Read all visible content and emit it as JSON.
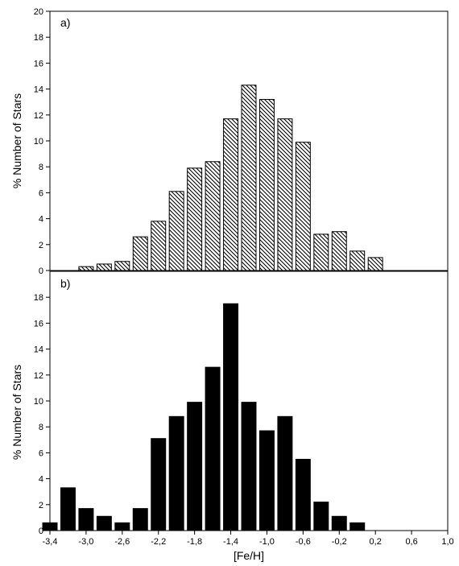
{
  "chart_data": [
    {
      "type": "bar",
      "panel_label": "a)",
      "ylabel": "% Number of Stars",
      "ylim": [
        0,
        20
      ],
      "yticks": [
        "0",
        "2",
        "4",
        "6",
        "8",
        "10",
        "12",
        "14",
        "16",
        "18",
        "20"
      ],
      "fill": "hatched",
      "bar_width": 0.16,
      "x": [
        -3.0,
        -2.8,
        -2.6,
        -2.4,
        -2.2,
        -2.0,
        -1.8,
        -1.6,
        -1.4,
        -1.2,
        -1.0,
        -0.8,
        -0.6,
        -0.4,
        -0.2,
        0.0,
        0.2
      ],
      "values": [
        0.3,
        0.5,
        0.7,
        2.6,
        3.8,
        6.1,
        7.9,
        8.4,
        11.7,
        14.3,
        13.2,
        11.7,
        9.9,
        2.8,
        3.0,
        1.5,
        1.0
      ]
    },
    {
      "type": "bar",
      "panel_label": "b)",
      "ylabel": "% Number of Stars",
      "xlabel": "[Fe/H]",
      "ylim": [
        0,
        20
      ],
      "yticks": [
        "0",
        "2",
        "4",
        "6",
        "8",
        "10",
        "12",
        "14",
        "16",
        "18"
      ],
      "xlim": [
        -3.4,
        1.0
      ],
      "xticks": [
        "-3,4",
        "-3,0",
        "-2,6",
        "-2,2",
        "-1,8",
        "-1,4",
        "-1,0",
        "-0,6",
        "-0,2",
        "0,2",
        "0,6",
        "1,0"
      ],
      "fill": "solid",
      "bar_width": 0.16,
      "x": [
        -3.4,
        -3.2,
        -3.0,
        -2.8,
        -2.6,
        -2.4,
        -2.2,
        -2.0,
        -1.8,
        -1.6,
        -1.4,
        -1.2,
        -1.0,
        -0.8,
        -0.6,
        -0.4,
        -0.2,
        0.0,
        0.2
      ],
      "values": [
        0.6,
        3.3,
        1.7,
        1.1,
        0.6,
        1.7,
        7.1,
        8.8,
        9.9,
        12.6,
        17.5,
        9.9,
        7.7,
        8.8,
        5.5,
        2.2,
        1.1,
        0.6,
        0
      ]
    }
  ]
}
